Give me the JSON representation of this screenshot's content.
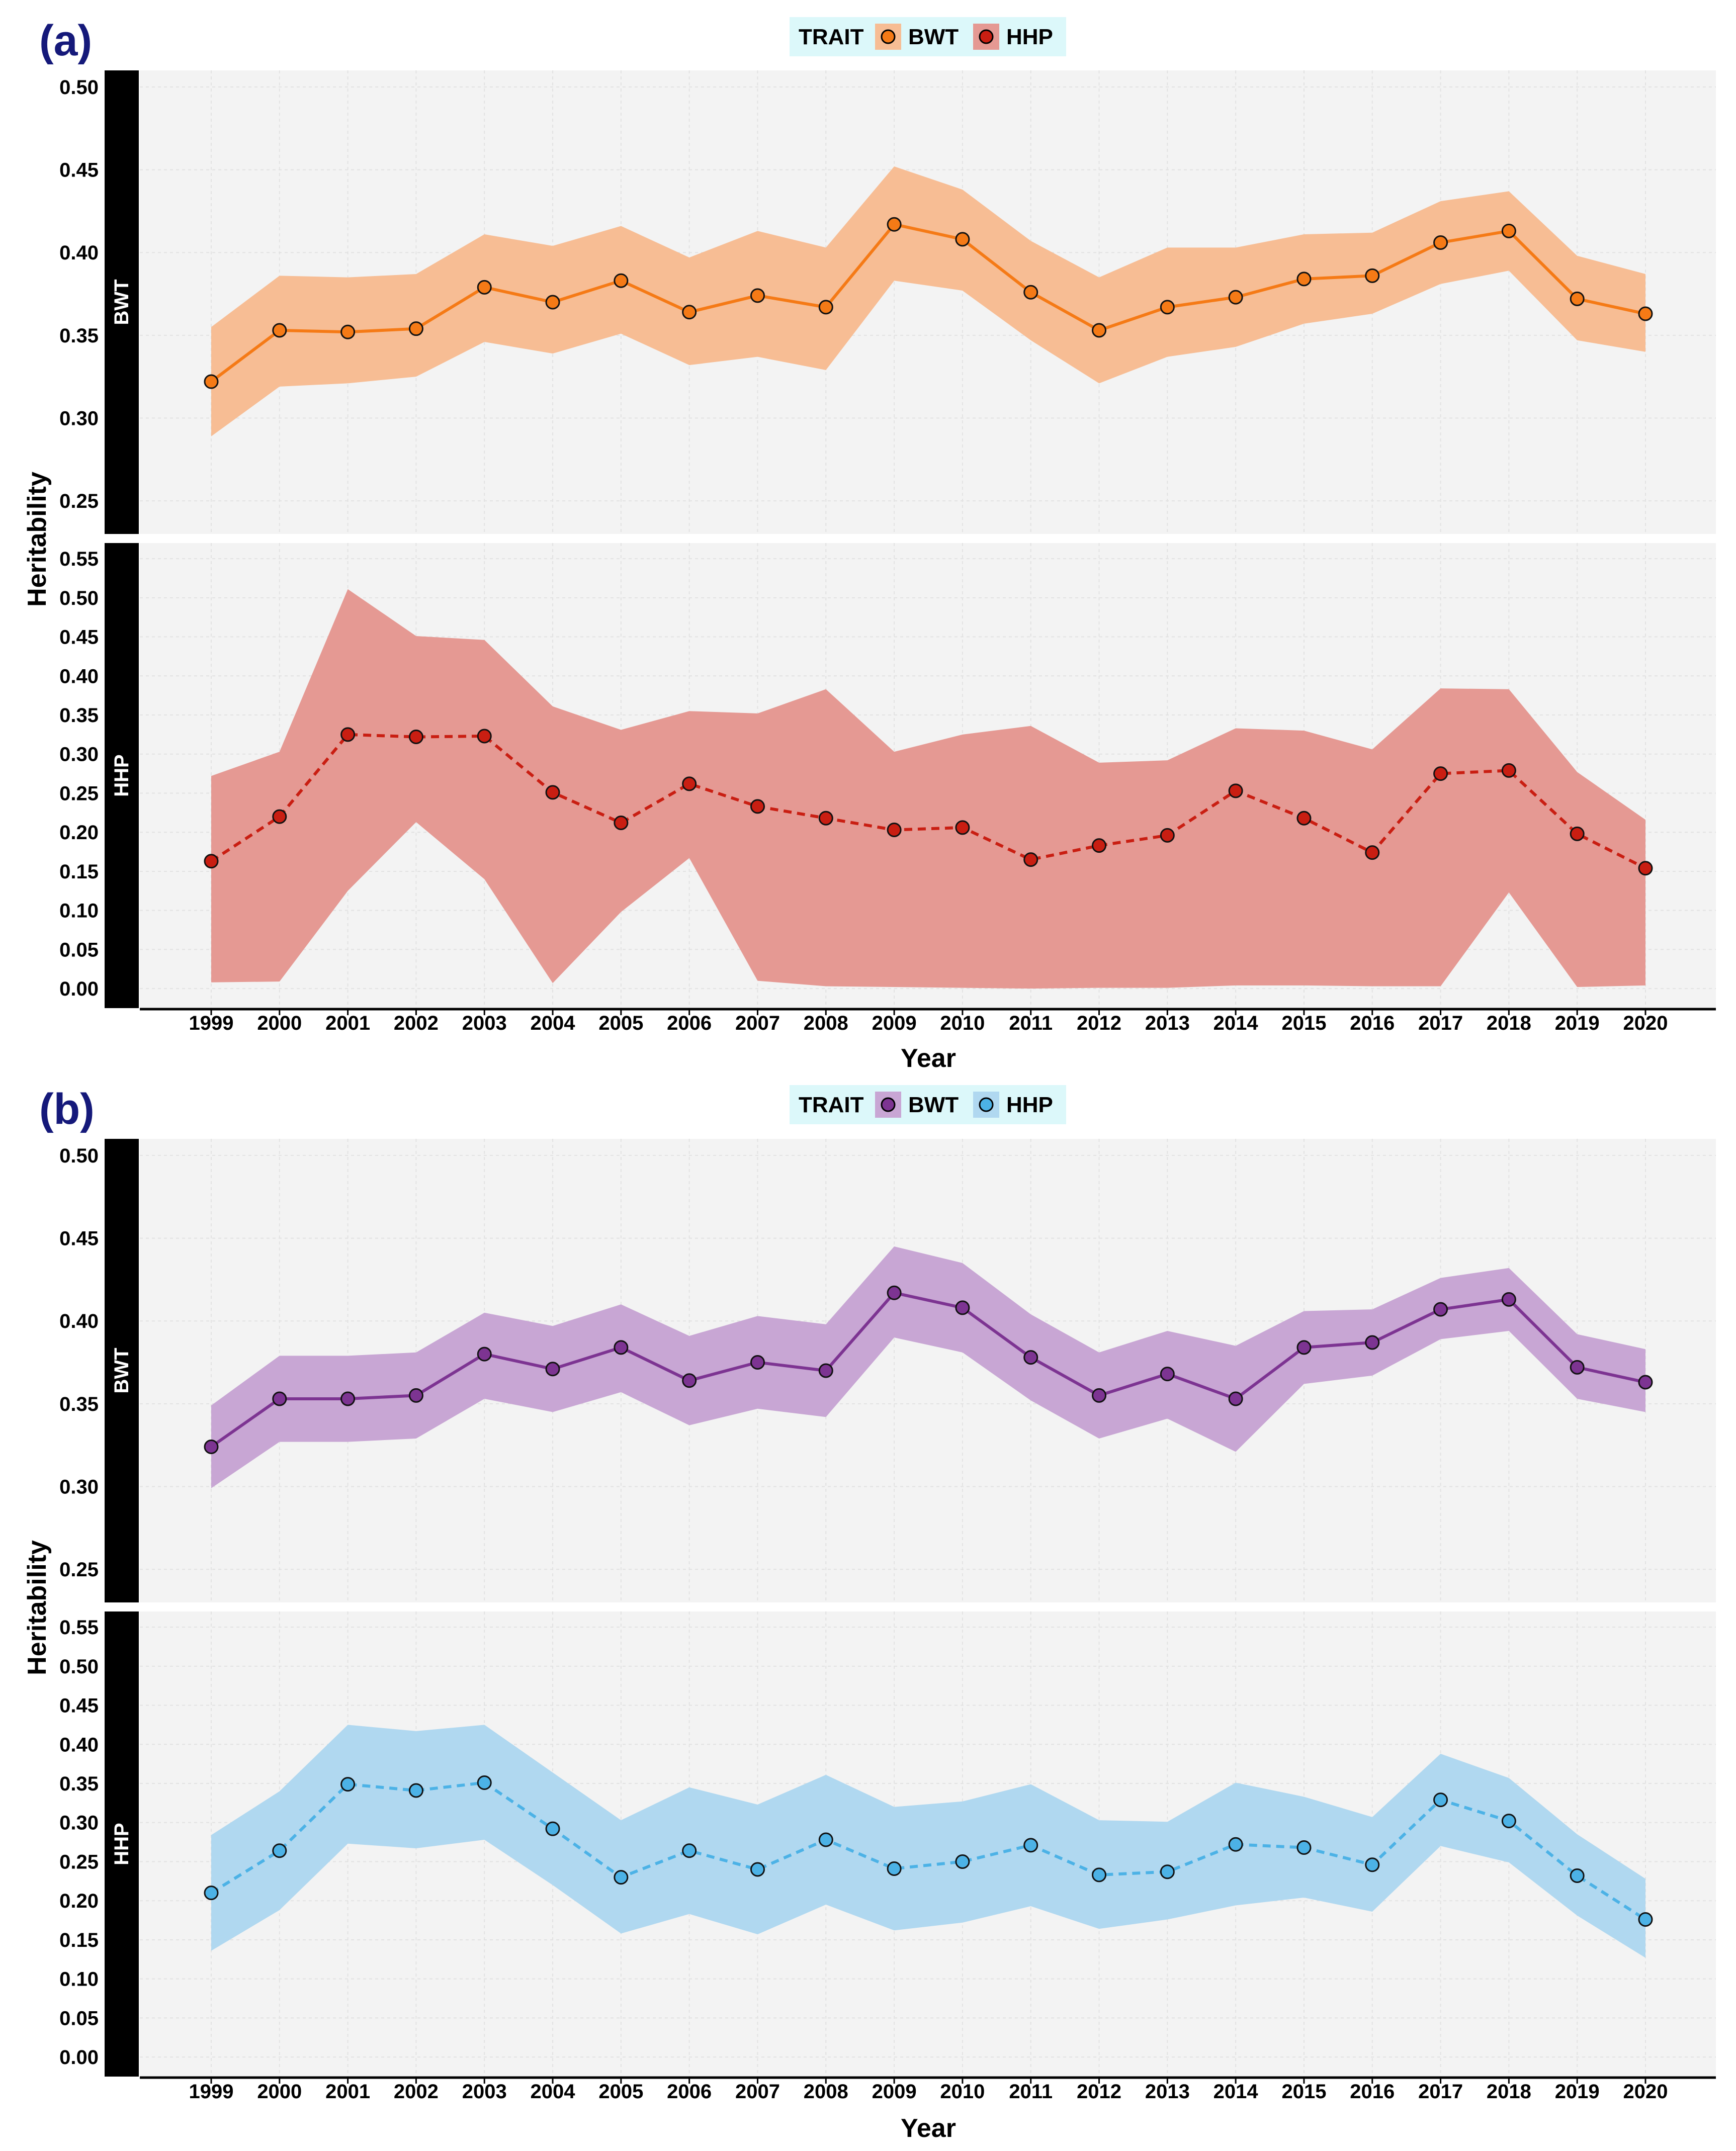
{
  "figure": {
    "panel_a_label": "(a)",
    "panel_b_label": "(b)"
  },
  "chart_data": [
    {
      "type": "line",
      "panel": "(a)",
      "legend_title": "TRAIT",
      "legend_position": "top",
      "xlabel": "Year",
      "ylabel": "Heritability",
      "x": [
        1999,
        2000,
        2001,
        2002,
        2003,
        2004,
        2005,
        2006,
        2007,
        2008,
        2009,
        2010,
        2011,
        2012,
        2013,
        2014,
        2015,
        2016,
        2017,
        2018,
        2019,
        2020
      ],
      "grid": true,
      "facets": [
        {
          "strip": "BWT",
          "ylim": [
            0.23,
            0.51
          ],
          "yticks": [
            0.25,
            0.3,
            0.35,
            0.4,
            0.45,
            0.5
          ],
          "series": {
            "name": "BWT",
            "color": "#f57a16",
            "band_color": "#f7bd94",
            "line_style": "solid",
            "values": [
              0.322,
              0.353,
              0.352,
              0.354,
              0.379,
              0.37,
              0.383,
              0.364,
              0.374,
              0.367,
              0.417,
              0.408,
              0.376,
              0.353,
              0.367,
              0.373,
              0.384,
              0.386,
              0.406,
              0.413,
              0.372,
              0.363
            ],
            "lower": [
              0.289,
              0.319,
              0.321,
              0.325,
              0.346,
              0.339,
              0.351,
              0.332,
              0.337,
              0.329,
              0.383,
              0.377,
              0.347,
              0.321,
              0.337,
              0.343,
              0.357,
              0.363,
              0.381,
              0.389,
              0.347,
              0.34
            ],
            "upper": [
              0.355,
              0.386,
              0.385,
              0.387,
              0.411,
              0.404,
              0.416,
              0.397,
              0.413,
              0.403,
              0.452,
              0.438,
              0.407,
              0.385,
              0.403,
              0.403,
              0.411,
              0.412,
              0.431,
              0.437,
              0.398,
              0.387
            ]
          }
        },
        {
          "strip": "HHP",
          "ylim": [
            -0.025,
            0.57
          ],
          "yticks": [
            0.0,
            0.05,
            0.1,
            0.15,
            0.2,
            0.25,
            0.3,
            0.35,
            0.4,
            0.45,
            0.5,
            0.55
          ],
          "series": {
            "name": "HHP",
            "color": "#c91e12",
            "band_color": "#e59993",
            "line_style": "dashed",
            "values": [
              0.163,
              0.22,
              0.325,
              0.322,
              0.323,
              0.251,
              0.212,
              0.262,
              0.233,
              0.218,
              0.203,
              0.206,
              0.165,
              0.183,
              0.196,
              0.253,
              0.218,
              0.174,
              0.275,
              0.279,
              0.198,
              0.154
            ],
            "lower": [
              0.008,
              0.009,
              0.125,
              0.213,
              0.14,
              0.007,
              0.098,
              0.167,
              0.01,
              0.003,
              0.002,
              0.001,
              0.0,
              0.001,
              0.001,
              0.004,
              0.004,
              0.003,
              0.003,
              0.123,
              0.002,
              0.004
            ],
            "upper": [
              0.272,
              0.303,
              0.511,
              0.451,
              0.446,
              0.361,
              0.331,
              0.355,
              0.352,
              0.383,
              0.303,
              0.325,
              0.336,
              0.289,
              0.292,
              0.333,
              0.33,
              0.306,
              0.384,
              0.383,
              0.277,
              0.216
            ]
          }
        }
      ]
    },
    {
      "type": "line",
      "panel": "(b)",
      "legend_title": "TRAIT",
      "legend_position": "top",
      "xlabel": "Year",
      "ylabel": "Heritability",
      "x": [
        1999,
        2000,
        2001,
        2002,
        2003,
        2004,
        2005,
        2006,
        2007,
        2008,
        2009,
        2010,
        2011,
        2012,
        2013,
        2014,
        2015,
        2016,
        2017,
        2018,
        2019,
        2020
      ],
      "grid": true,
      "facets": [
        {
          "strip": "BWT",
          "ylim": [
            0.23,
            0.51
          ],
          "yticks": [
            0.25,
            0.3,
            0.35,
            0.4,
            0.45,
            0.5
          ],
          "series": {
            "name": "BWT",
            "color": "#7d3492",
            "band_color": "#c8a6d4",
            "line_style": "solid",
            "values": [
              0.324,
              0.353,
              0.353,
              0.355,
              0.38,
              0.371,
              0.384,
              0.364,
              0.375,
              0.37,
              0.417,
              0.408,
              0.378,
              0.355,
              0.368,
              0.353,
              0.384,
              0.387,
              0.407,
              0.413,
              0.372,
              0.363
            ],
            "lower": [
              0.299,
              0.327,
              0.327,
              0.329,
              0.353,
              0.345,
              0.357,
              0.337,
              0.347,
              0.342,
              0.39,
              0.381,
              0.352,
              0.329,
              0.341,
              0.321,
              0.362,
              0.367,
              0.389,
              0.394,
              0.353,
              0.345
            ],
            "upper": [
              0.349,
              0.379,
              0.379,
              0.381,
              0.405,
              0.397,
              0.41,
              0.391,
              0.403,
              0.398,
              0.445,
              0.435,
              0.404,
              0.381,
              0.394,
              0.385,
              0.406,
              0.407,
              0.426,
              0.432,
              0.392,
              0.383
            ]
          }
        },
        {
          "strip": "HHP",
          "ylim": [
            -0.025,
            0.57
          ],
          "yticks": [
            0.0,
            0.05,
            0.1,
            0.15,
            0.2,
            0.25,
            0.3,
            0.35,
            0.4,
            0.45,
            0.5,
            0.55
          ],
          "series": {
            "name": "HHP",
            "color": "#4cb2e6",
            "band_color": "#b0d8f0",
            "line_style": "dashed",
            "values": [
              0.21,
              0.264,
              0.349,
              0.341,
              0.351,
              0.292,
              0.23,
              0.264,
              0.24,
              0.278,
              0.241,
              0.25,
              0.271,
              0.233,
              0.237,
              0.272,
              0.268,
              0.246,
              0.329,
              0.302,
              0.232,
              0.176
            ],
            "lower": [
              0.136,
              0.188,
              0.273,
              0.267,
              0.278,
              0.22,
              0.158,
              0.183,
              0.157,
              0.195,
              0.162,
              0.172,
              0.193,
              0.164,
              0.176,
              0.194,
              0.204,
              0.186,
              0.27,
              0.249,
              0.181,
              0.127
            ],
            "upper": [
              0.284,
              0.34,
              0.425,
              0.417,
              0.425,
              0.364,
              0.303,
              0.345,
              0.323,
              0.361,
              0.32,
              0.327,
              0.349,
              0.303,
              0.301,
              0.351,
              0.333,
              0.307,
              0.388,
              0.357,
              0.285,
              0.228
            ]
          }
        }
      ]
    }
  ]
}
